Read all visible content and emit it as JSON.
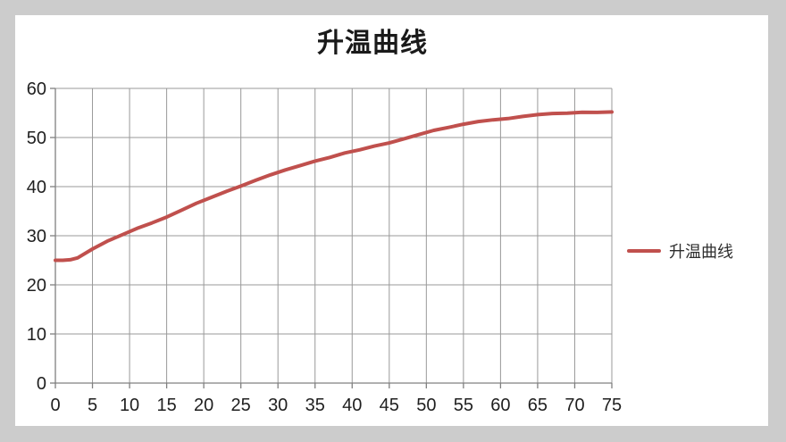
{
  "window": {
    "background_color": "#CCCCCC",
    "chart_background": "#FFFFFF"
  },
  "chart_data": {
    "type": "line",
    "title": "升温曲线",
    "xlabel": "",
    "ylabel": "",
    "xlim": [
      0,
      75
    ],
    "ylim": [
      0,
      60
    ],
    "x_ticks": [
      0,
      5,
      10,
      15,
      20,
      25,
      30,
      35,
      40,
      45,
      50,
      55,
      60,
      65,
      70,
      75
    ],
    "y_ticks": [
      0,
      10,
      20,
      30,
      40,
      50,
      60
    ],
    "grid": "both",
    "legend_position": "right",
    "legend": {
      "label": "升温曲线"
    },
    "colors": {
      "gridline": "#999999",
      "axis": "#808080",
      "tick_label": "#1F1F1F",
      "title": "#1A1A1A",
      "series": "#C0504D"
    },
    "series": [
      {
        "name": "升温曲线",
        "color": "#C0504D",
        "x": [
          0,
          1,
          2,
          3,
          5,
          7,
          9,
          11,
          13,
          15,
          17,
          19,
          21,
          23,
          25,
          27,
          29,
          31,
          33,
          35,
          37,
          39,
          41,
          43,
          45,
          47,
          49,
          51,
          53,
          55,
          57,
          59,
          61,
          63,
          65,
          67,
          69,
          71,
          73,
          75
        ],
        "y": [
          25,
          25,
          25.1,
          25.5,
          27.3,
          28.9,
          30.2,
          31.5,
          32.6,
          33.8,
          35.2,
          36.6,
          37.8,
          39,
          40.1,
          41.3,
          42.4,
          43.4,
          44.3,
          45.2,
          45.95,
          46.85,
          47.5,
          48.25,
          48.9,
          49.75,
          50.6,
          51.45,
          52.05,
          52.7,
          53.25,
          53.6,
          53.85,
          54.3,
          54.65,
          54.9,
          54.95,
          55.15,
          55.1,
          55.2
        ]
      }
    ]
  }
}
